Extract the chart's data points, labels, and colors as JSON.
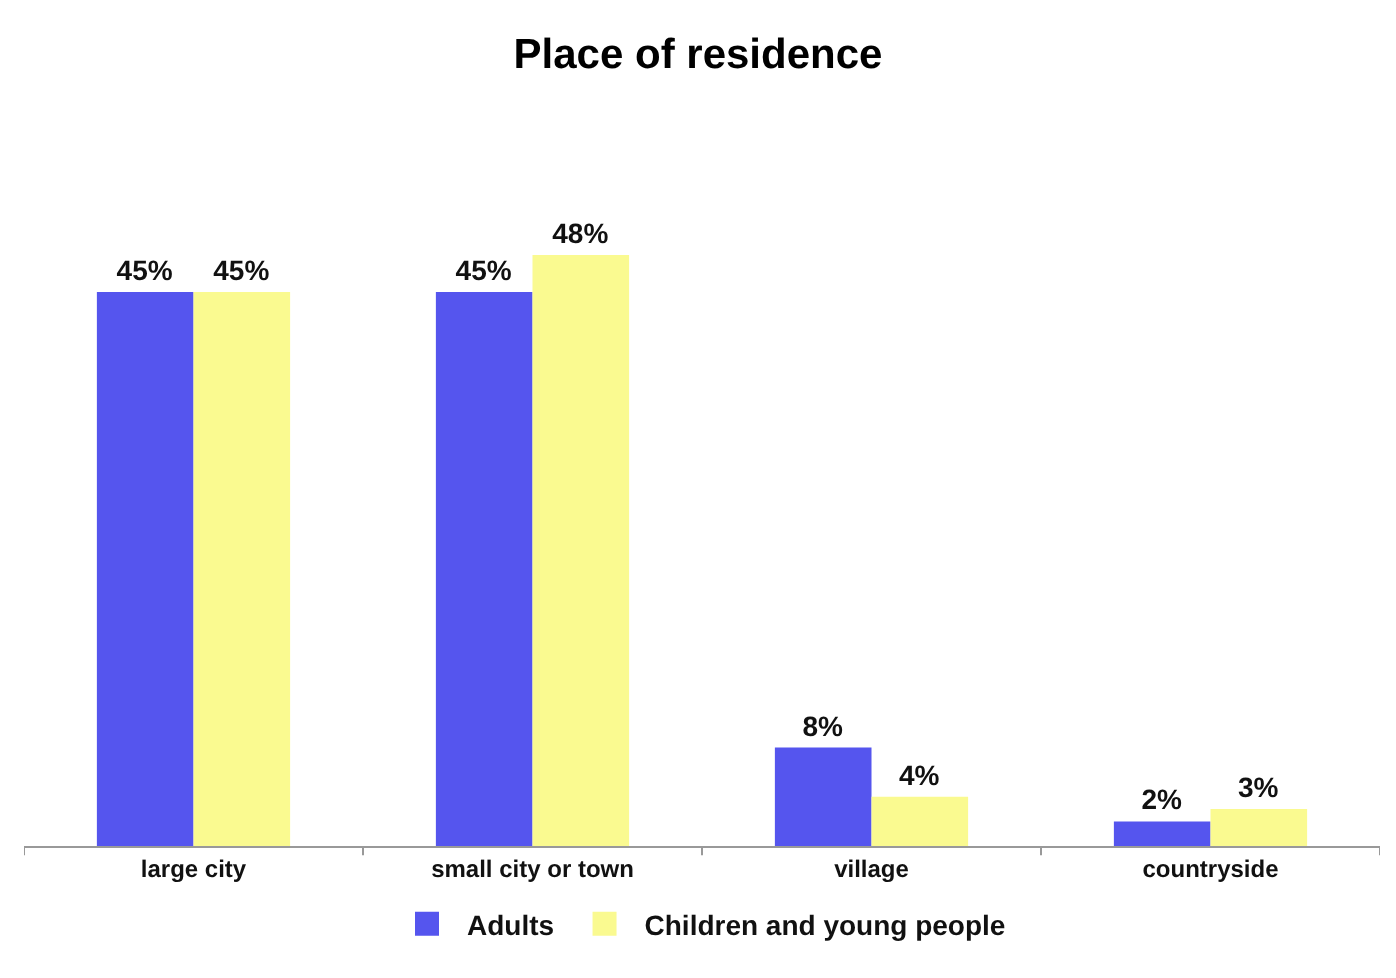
{
  "chart_data": {
    "type": "bar",
    "title": "Place of residence",
    "categories": [
      "large city",
      "small city or town",
      "village",
      "countryside"
    ],
    "series": [
      {
        "name": "Adults",
        "color": "#5555ee",
        "values": [
          45,
          45,
          8,
          2
        ],
        "value_labels": [
          "45%",
          "45%",
          "8%",
          "2%"
        ]
      },
      {
        "name": "Children and young people",
        "color": "#fafa90",
        "values": [
          45,
          48,
          4,
          3
        ],
        "value_labels": [
          "45%",
          "48%",
          "4%",
          "3%"
        ]
      }
    ],
    "tick_labels": "x",
    "legend": "bottom"
  }
}
